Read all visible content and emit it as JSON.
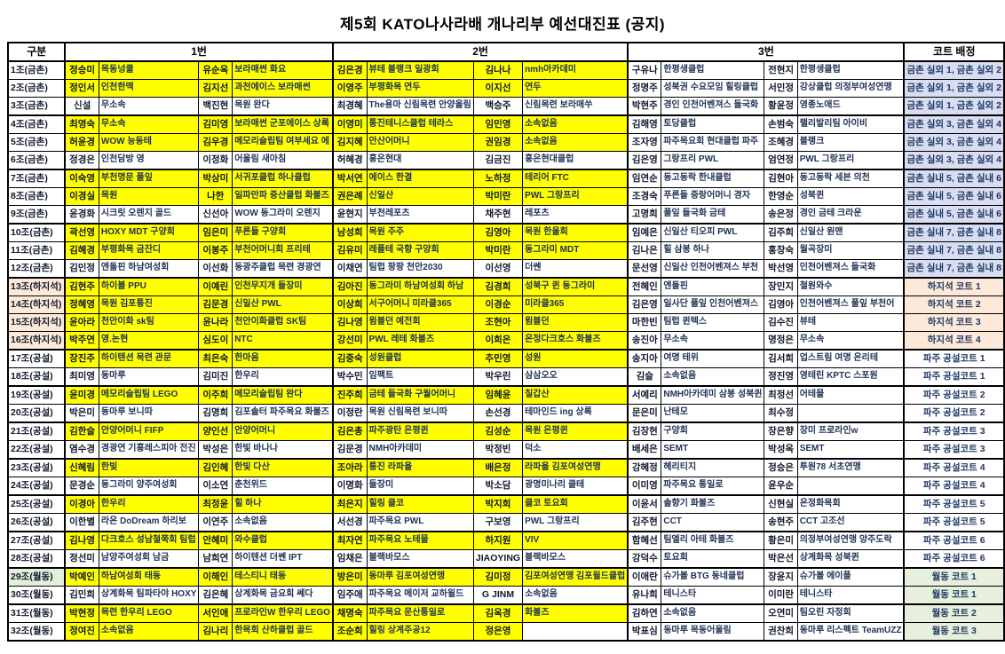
{
  "title": "제5회 KATO나사라배 개나리부 예선대진표 (공지)",
  "header": {
    "cols": [
      "구분",
      "1번",
      "2번",
      "3번",
      "코트 배정"
    ]
  },
  "colors": {
    "highlight": "#ffff00",
    "lavender": "#d9ddf1",
    "cream": "#fde9d9",
    "green": "#e7f0dc",
    "group_green": "#e2efda",
    "white": "#ffffff",
    "grid": "#000000"
  },
  "rows": [
    {
      "g": "1조(금촌)",
      "gz": "w",
      "hl": true,
      "cells": [
        [
          "정승미",
          "목동넝쿨"
        ],
        [
          "유순옥",
          "보라매썬 화요"
        ],
        [
          "김은경",
          "뷰테 블랭크 일광회"
        ],
        [
          "김나나",
          "nmh아카데미"
        ],
        [
          "구유나",
          "한평생클럽"
        ],
        [
          "전현지",
          "한평생클럽"
        ]
      ],
      "court": "금촌 실외 1, 금촌 실외 2",
      "cz": "lav",
      "sep": false
    },
    {
      "g": "2조(금촌)",
      "gz": "w",
      "hl": true,
      "cells": [
        [
          "정인서",
          "인천한맥"
        ],
        [
          "김지선",
          "과천에이스 보라매썬"
        ],
        [
          "이영주",
          "부평화목 연두"
        ],
        [
          "이지선",
          "연두"
        ],
        [
          "정명주",
          "성북권 수요모임 힐링클럽"
        ],
        [
          "서민정",
          "강상클럽 의정부여성연맹"
        ]
      ],
      "court": "금촌 실외 1, 금촌 실외 2",
      "cz": "lav",
      "sep": false
    },
    {
      "g": "3조(금촌)",
      "gz": "w",
      "hl": false,
      "cells": [
        [
          "신설",
          "무소속"
        ],
        [
          "백진현",
          "목원 완다"
        ],
        [
          "최경혜",
          "The용마 신림목련 안양올림"
        ],
        [
          "백승주",
          "신림목련 보라매쑤"
        ],
        [
          "박현주",
          "경인 인천어벤져스 들국화"
        ],
        [
          "황윤정",
          "영종노애드"
        ]
      ],
      "court": "금촌 실외 1, 금촌 실외 2",
      "cz": "lav",
      "sep": true
    },
    {
      "g": "4조(금촌)",
      "gz": "w",
      "hl": true,
      "cells": [
        [
          "최영숙",
          "무소속"
        ],
        [
          "김미영",
          "보라매썬 군포에이스 상록"
        ],
        [
          "이영미",
          "통진테니스클럽 테라스"
        ],
        [
          "임민영",
          "소속없음"
        ],
        [
          "김해영",
          "토당클럽"
        ],
        [
          "손범숙",
          "랠리발리팀 아이비"
        ]
      ],
      "court": "금촌 실외 3, 금촌 실외 4",
      "cz": "lav",
      "sep": false
    },
    {
      "g": "5조(금촌)",
      "gz": "w",
      "hl": true,
      "cells": [
        [
          "허윤경",
          "WOW 능동테"
        ],
        [
          "김우경",
          "메모리슬립팀 여부세요 에"
        ],
        [
          "김지혜",
          "안산어머니"
        ],
        [
          "권임경",
          "소속없음"
        ],
        [
          "조자영",
          "파주목요회 현대클럽 파주"
        ],
        [
          "조혜경",
          "블랭크"
        ]
      ],
      "court": "금촌 실외 3, 금촌 실외 4",
      "cz": "lav",
      "sep": false
    },
    {
      "g": "6조(금촌)",
      "gz": "w",
      "hl": false,
      "cells": [
        [
          "정경은",
          "인천담방 영"
        ],
        [
          "이정화",
          "어울림 새아침"
        ],
        [
          "허혜경",
          "홍은현대"
        ],
        [
          "김금진",
          "홍은현대클럽"
        ],
        [
          "김은영",
          "그랑프리 PWL"
        ],
        [
          "엄연정",
          "PWL 그랑프리"
        ]
      ],
      "court": "금촌 실외 3, 금촌 실외 4",
      "cz": "lav",
      "sep": true
    },
    {
      "g": "7조(금촌)",
      "gz": "w",
      "hl": true,
      "cells": [
        [
          "이숙영",
          "부천명문 풀잎"
        ],
        [
          "박상미",
          "서귀포클럽 하나클럽"
        ],
        [
          "박서연",
          "에이스 한결"
        ],
        [
          "노하정",
          "테리어 FTC"
        ],
        [
          "임연순",
          "동고동락 한내클럽"
        ],
        [
          "김현아",
          "동고동락 세븐 의천"
        ]
      ],
      "court": "금촌 실내 5, 금촌 실내 6",
      "cz": "lav",
      "sep": false
    },
    {
      "g": "8조(금촌)",
      "gz": "w",
      "hl": true,
      "cells": [
        [
          "이경실",
          "목원"
        ],
        [
          "나한",
          "일파만파 중산클럽 화볼즈"
        ],
        [
          "권은례",
          "신일산"
        ],
        [
          "박미란",
          "PWL 그랑프리"
        ],
        [
          "조경숙",
          "푸른들 중랑어머니 경자"
        ],
        [
          "한영순",
          "성북퀸"
        ]
      ],
      "court": "금촌 실내 5, 금촌 실내 6",
      "cz": "lav",
      "sep": false
    },
    {
      "g": "9조(금촌)",
      "gz": "w",
      "hl": false,
      "cells": [
        [
          "윤경화",
          "시크릿 오렌지 골드"
        ],
        [
          "신선아",
          "WOW 동그라미 오렌지"
        ],
        [
          "윤현지",
          "부천레포츠"
        ],
        [
          "채주현",
          "레포츠"
        ],
        [
          "고명희",
          "풀잎 들국화 금테"
        ],
        [
          "송은정",
          "경인 금테 크라운"
        ]
      ],
      "court": "금촌 실내 5, 금촌 실내 6",
      "cz": "lav",
      "sep": true
    },
    {
      "g": "10조(금촌)",
      "gz": "w",
      "hl": true,
      "cells": [
        [
          "곽선영",
          "HOXY MDT 구양회"
        ],
        [
          "임은미",
          "푸른들 구양회"
        ],
        [
          "남성희",
          "목원 주주"
        ],
        [
          "김영아",
          "목원 한울회"
        ],
        [
          "임예은",
          "신일산 티오피 PWL"
        ],
        [
          "김주희",
          "신일산 원맨"
        ]
      ],
      "court": "금촌 실내 7, 금촌 실내 8",
      "cz": "lav",
      "sep": false
    },
    {
      "g": "11조(금촌)",
      "gz": "w",
      "hl": true,
      "cells": [
        [
          "김혜경",
          "부평화목 금잔디"
        ],
        [
          "이봉주",
          "부천어머니회 프리테"
        ],
        [
          "김유미",
          "레플테 국향 구양회"
        ],
        [
          "박미란",
          "동그라미 MDT"
        ],
        [
          "김나은",
          "힐 삼봉 하나"
        ],
        [
          "홍창숙",
          "월곡장미"
        ]
      ],
      "court": "금촌 실내 7, 금촌 실내 8",
      "cz": "lav",
      "sep": false
    },
    {
      "g": "12조(금촌)",
      "gz": "w",
      "hl": false,
      "cells": [
        [
          "김민정",
          "엔돌핀 하남여성회"
        ],
        [
          "이선화",
          "동광주클럽 목련 경광연"
        ],
        [
          "이채연",
          "팀럽 팡팡 천안2030"
        ],
        [
          "이선영",
          "더쎈"
        ],
        [
          "문선영",
          "신일산 인천어벤져스 부천"
        ],
        [
          "박선영",
          "인천어벤져스 들국화"
        ]
      ],
      "court": "금촌 실내 7, 금촌 실내 8",
      "cz": "lav",
      "sep": true
    },
    {
      "g": "13조(하지석)",
      "gz": "cream",
      "hl": true,
      "cells": [
        [
          "김현주",
          "하이볼 PPU"
        ],
        [
          "이예린",
          "인천무지개 들장미"
        ],
        [
          "김아진",
          "동그라미 하남여성회 하남"
        ],
        [
          "김경희",
          "성북구 퀸 동그라미"
        ],
        [
          "전혜인",
          "엔돌핀"
        ],
        [
          "장민지",
          "철원와수"
        ]
      ],
      "court": "하지석 코트 1",
      "cz": "cream",
      "sep": false
    },
    {
      "g": "14조(하지석)",
      "gz": "cream",
      "hl": true,
      "cells": [
        [
          "정혜영",
          "목원 김포통진"
        ],
        [
          "김문경",
          "신일산 PWL"
        ],
        [
          "이상희",
          "서구어머니 미라클365"
        ],
        [
          "이경순",
          "미라클365"
        ],
        [
          "김은영",
          "일사단 풀잎 인천어벤져스"
        ],
        [
          "김영아",
          "인천어벤져스 풀잎 부천어"
        ]
      ],
      "court": "하지석 코트 2",
      "cz": "cream",
      "sep": false
    },
    {
      "g": "15조(하지석)",
      "gz": "cream",
      "hl": true,
      "cells": [
        [
          "윤아라",
          "천안이화 sk팀"
        ],
        [
          "윤나라",
          "천안이화클럽 SK팀"
        ],
        [
          "김나영",
          "윔블던 예전회"
        ],
        [
          "조현아",
          "윔블던"
        ],
        [
          "마한빈",
          "팀럽 퀸텍스"
        ],
        [
          "김수진",
          "뷰테"
        ]
      ],
      "court": "하지석 코트 3",
      "cz": "cream",
      "sep": false
    },
    {
      "g": "16조(하지석)",
      "gz": "cream",
      "hl": true,
      "cells": [
        [
          "박주연",
          "영.논현"
        ],
        [
          "심도이",
          "NTC"
        ],
        [
          "강선미",
          "PWL 레테 화볼즈"
        ],
        [
          "이희은",
          "온정다크호스 화볼즈"
        ],
        [
          "송진아",
          "무소속"
        ],
        [
          "명정은",
          "무소속"
        ]
      ],
      "court": "하지석 코트 4",
      "cz": "cream",
      "sep": true
    },
    {
      "g": "17조(공설)",
      "gz": "w",
      "hl": true,
      "cells": [
        [
          "장진주",
          "하이텐션 목련 관문"
        ],
        [
          "최은숙",
          "한마음"
        ],
        [
          "김중숙",
          "성원클럽"
        ],
        [
          "추민영",
          "성원"
        ],
        [
          "송지아",
          "여명 테위"
        ],
        [
          "김서희",
          "업스트림 여명 온리테"
        ]
      ],
      "court": "파주 공설코트 1",
      "cz": "w",
      "sep": false
    },
    {
      "g": "18조(공설)",
      "gz": "w",
      "hl": false,
      "cells": [
        [
          "최미영",
          "동마루"
        ],
        [
          "김미진",
          "한우리"
        ],
        [
          "박수민",
          "임팩트"
        ],
        [
          "박우린",
          "삼삼오오"
        ],
        [
          "김슬",
          "소속없음"
        ],
        [
          "정진영",
          "영테린 KPTC 스포원"
        ]
      ],
      "court": "파주 공설코트 1",
      "cz": "w",
      "sep": true
    },
    {
      "g": "19조(공설)",
      "gz": "w",
      "hl": true,
      "cells": [
        [
          "윤미경",
          "메모리슬립팀 LEGO"
        ],
        [
          "이주희",
          "메모리슬립팀 완다"
        ],
        [
          "진주희",
          "금테 들국화 구월어머니"
        ],
        [
          "임혜윤",
          "칠갑산"
        ],
        [
          "서예리",
          "NMH아카데미 삼봉 성북퀸"
        ],
        [
          "최정선",
          "어테믈"
        ]
      ],
      "court": "파주 공설코트 2",
      "cz": "w",
      "sep": false
    },
    {
      "g": "20조(공설)",
      "gz": "w",
      "hl": false,
      "cells": [
        [
          "박은미",
          "동마루 보니따"
        ],
        [
          "김명희",
          "김포솔터 파주목요 화볼즈"
        ],
        [
          "이정란",
          "목원 신림목련 보니따"
        ],
        [
          "손선경",
          "테마인드 ing 상록"
        ],
        [
          "문은미",
          "난테모"
        ],
        [
          "최수정",
          ""
        ]
      ],
      "court": "파주 공설코트 2",
      "cz": "w",
      "sep": true
    },
    {
      "g": "21조(공설)",
      "gz": "w",
      "hl": true,
      "cells": [
        [
          "김한슬",
          "안양어머니 FIFP"
        ],
        [
          "양인선",
          "안양어머니"
        ],
        [
          "김은총",
          "파주광탄 은평퀸"
        ],
        [
          "김성순",
          "목원 은평퀸"
        ],
        [
          "김장현",
          "구양회"
        ],
        [
          "장은향",
          "장미 프로라인w"
        ]
      ],
      "court": "파주 공설코트 3",
      "cz": "w",
      "sep": false
    },
    {
      "g": "22조(공설)",
      "gz": "w",
      "hl": false,
      "cells": [
        [
          "염수경",
          "경광연 기흥레스피아 전진"
        ],
        [
          "박성은",
          "한빛 바나나"
        ],
        [
          "김문경",
          "NMH아카데미"
        ],
        [
          "박정빈",
          "덕소"
        ],
        [
          "배세은",
          "SEMT"
        ],
        [
          "박성옥",
          "SEMT"
        ]
      ],
      "court": "파주 공설코트 3",
      "cz": "w",
      "sep": true
    },
    {
      "g": "23조(공설)",
      "gz": "w",
      "hl": true,
      "cells": [
        [
          "신혜림",
          "한빛"
        ],
        [
          "김인혜",
          "한빛 다산"
        ],
        [
          "조아라",
          "통진 라파욜"
        ],
        [
          "배은정",
          "라파욜 김포여성연맹"
        ],
        [
          "강혜정",
          "헤리티지"
        ],
        [
          "정승은",
          "투원78 서초연맹"
        ]
      ],
      "court": "파주 공설코트 4",
      "cz": "w",
      "sep": false
    },
    {
      "g": "24조(공설)",
      "gz": "w",
      "hl": false,
      "cells": [
        [
          "문경순",
          "동그라미 양주여성회"
        ],
        [
          "이소연",
          "춘천위드"
        ],
        [
          "이명화",
          "들장미"
        ],
        [
          "박소담",
          "광명미나리 클테"
        ],
        [
          "이미영",
          "파주목요 통일로"
        ],
        [
          "윤우순",
          ""
        ]
      ],
      "court": "파주 공설코트 4",
      "cz": "w",
      "sep": true
    },
    {
      "g": "25조(공설)",
      "gz": "w",
      "hl": true,
      "cells": [
        [
          "이경아",
          "한우리"
        ],
        [
          "최정윤",
          "힐 하나"
        ],
        [
          "최은지",
          "힐링 클코"
        ],
        [
          "박지희",
          "클코 토요회"
        ],
        [
          "이윤서",
          "솔향기 화볼즈"
        ],
        [
          "신현실",
          "온정화목회"
        ]
      ],
      "court": "파주 공설코트 5",
      "cz": "w",
      "sep": false
    },
    {
      "g": "26조(공설)",
      "gz": "w",
      "hl": false,
      "cells": [
        [
          "이한별",
          "라온 DoDream 하리보"
        ],
        [
          "이연주",
          "소속없음"
        ],
        [
          "서선경",
          "파주목요 PWL"
        ],
        [
          "구보영",
          "PWL 그랑프리"
        ],
        [
          "김주현",
          "CCT"
        ],
        [
          "송현주",
          "CCT 고조선"
        ]
      ],
      "court": "파주 공설코트 5",
      "cz": "w",
      "sep": true
    },
    {
      "g": "27조(공설)",
      "gz": "w",
      "hl": true,
      "cells": [
        [
          "김나영",
          "다크호스 성남철쭉회 팀럽"
        ],
        [
          "안혜미",
          "와수클럽"
        ],
        [
          "최자연",
          "파주목요 노테믈"
        ],
        [
          "하지원",
          "VIV"
        ],
        [
          "함혜선",
          "팀엘리 아테 화볼즈"
        ],
        [
          "황은미",
          "의정부여성연맹 양주도락"
        ]
      ],
      "court": "파주 공설코트 6",
      "cz": "w",
      "sep": false
    },
    {
      "g": "28조(공설)",
      "gz": "w",
      "hl": false,
      "cells": [
        [
          "정선미",
          "남양주여성회 남금"
        ],
        [
          "남희연",
          "하이텐션 더쎈 IPT"
        ],
        [
          "임채은",
          "블랙바모스"
        ],
        [
          "JIAOYING",
          "블랙바모스"
        ],
        [
          "강덕수",
          "토요회"
        ],
        [
          "박은선",
          "상계화목 성북퀸"
        ]
      ],
      "court": "파주 공설코트 6",
      "cz": "w",
      "sep": true
    },
    {
      "g": "29조(월동)",
      "gz": "green",
      "hl": true,
      "cells": [
        [
          "박예인",
          "하남여성회 태동"
        ],
        [
          "이해인",
          "테스티니 태동"
        ],
        [
          "방은미",
          "동마루 김포여성연맹"
        ],
        [
          "김미정",
          "김포여성연맹 김포윌드클럽"
        ],
        [
          "이애란",
          "슈가볼 BTG 동네클럽"
        ],
        [
          "장윤지",
          "슈가볼 에이플"
        ]
      ],
      "court": "월동 코트 1",
      "cz": "green",
      "sep": false
    },
    {
      "g": "30조(월동)",
      "gz": "w",
      "hl": false,
      "cells": [
        [
          "김민희",
          "상계화목 팀파타야 HOXY"
        ],
        [
          "김은혜",
          "상계화목 금요회 쎄다"
        ],
        [
          "임주애",
          "파주목요 메이저 교하윌드"
        ],
        [
          "G JINM",
          "소속없음"
        ],
        [
          "유나희",
          "테니스타"
        ],
        [
          "이미란",
          "테니스타"
        ]
      ],
      "court": "월동 코트 1",
      "cz": "green",
      "sep": true
    },
    {
      "g": "31조(월동)",
      "gz": "w",
      "hl": true,
      "cells": [
        [
          "박현정",
          "목련 한우리 LEGO"
        ],
        [
          "서인애",
          "프로라인W 한우리 LEGO"
        ],
        [
          "채명숙",
          "파주목요 문산통일로"
        ],
        [
          "김옥경",
          "화볼즈"
        ],
        [
          "김하연",
          "소속없음"
        ],
        [
          "오연미",
          "팀오린 자정회"
        ]
      ],
      "court": "월동 코트 2",
      "cz": "green",
      "sep": false
    },
    {
      "g": "32조(월동)",
      "gz": "w",
      "hl": true,
      "no_hl": [
        7
      ],
      "cells": [
        [
          "정여진",
          "소속없음"
        ],
        [
          "김나리",
          "한목회 산하클럽 골드"
        ],
        [
          "조순희",
          "힐링 상계주공12"
        ],
        [
          "정은영",
          ""
        ],
        [
          "박표심",
          "동마루 목동어울림"
        ],
        [
          "권찬희",
          "동마루 리스펙트 TeamUZZ"
        ]
      ],
      "court": "월동 코트 3",
      "cz": "green",
      "sep": false
    }
  ]
}
